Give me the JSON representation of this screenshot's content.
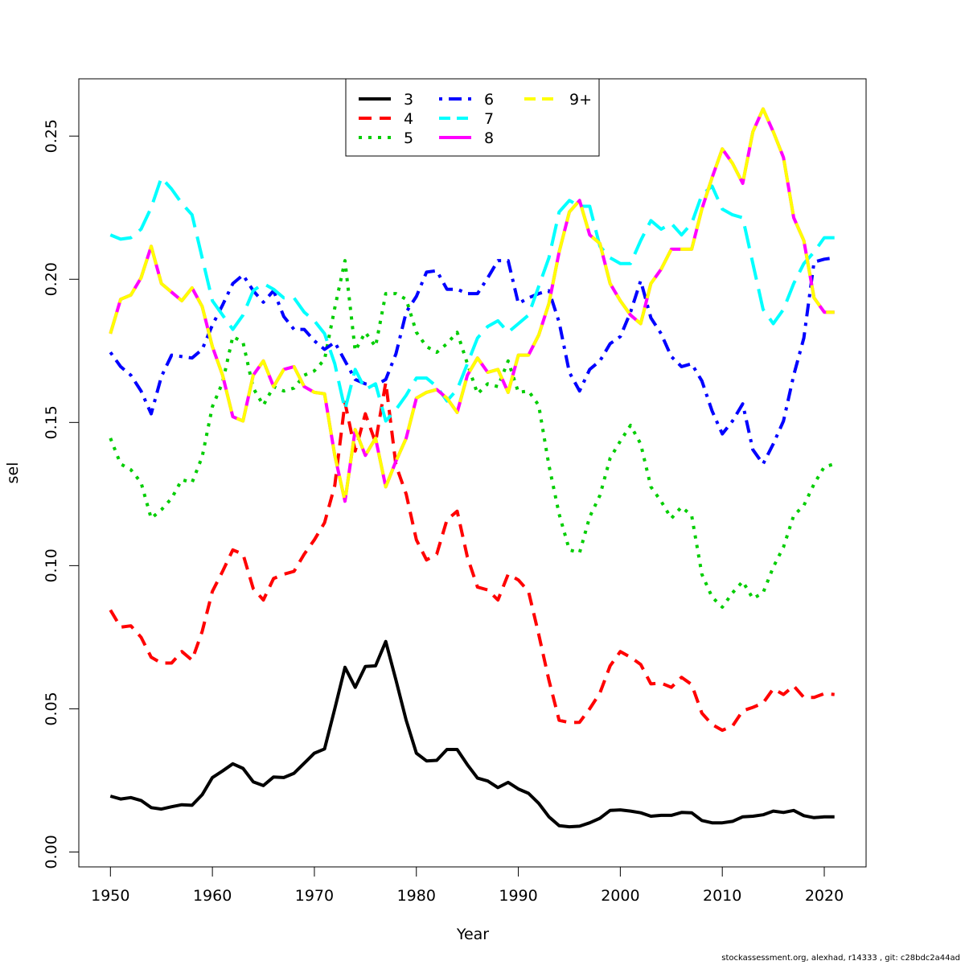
{
  "chart_data": {
    "type": "line",
    "title": "",
    "xlabel": "Year",
    "ylabel": "sel",
    "xlim": [
      1946.9,
      2024.1
    ],
    "ylim": [
      -0.0052,
      0.27
    ],
    "xticks": [
      1950,
      1960,
      1970,
      1980,
      1990,
      2000,
      2010,
      2020
    ],
    "yticks": [
      "0.00",
      "0.05",
      "0.10",
      "0.15",
      "0.20",
      "0.25"
    ],
    "grid": false,
    "legend_position": "top-center",
    "x": [
      1950,
      1951,
      1952,
      1953,
      1954,
      1955,
      1956,
      1957,
      1958,
      1959,
      1960,
      1961,
      1962,
      1963,
      1964,
      1965,
      1966,
      1967,
      1968,
      1969,
      1970,
      1971,
      1972,
      1973,
      1974,
      1975,
      1976,
      1977,
      1978,
      1979,
      1980,
      1981,
      1982,
      1983,
      1984,
      1985,
      1986,
      1987,
      1988,
      1989,
      1990,
      1991,
      1992,
      1993,
      1994,
      1995,
      1996,
      1997,
      1998,
      1999,
      2000,
      2001,
      2002,
      2003,
      2004,
      2005,
      2006,
      2007,
      2008,
      2009,
      2010,
      2011,
      2012,
      2013,
      2014,
      2015,
      2016,
      2017,
      2018,
      2019,
      2020,
      2021
    ],
    "series": [
      {
        "name": "3",
        "color": "#000000",
        "dash": "solid",
        "values": [
          0.0195,
          0.0185,
          0.019,
          0.018,
          0.0155,
          0.015,
          0.0158,
          0.0165,
          0.0163,
          0.02,
          0.026,
          0.0283,
          0.0308,
          0.0292,
          0.0245,
          0.0232,
          0.0262,
          0.026,
          0.0275,
          0.031,
          0.0345,
          0.036,
          0.05,
          0.0645,
          0.0575,
          0.0648,
          0.065,
          0.0735,
          0.06,
          0.046,
          0.0345,
          0.0318,
          0.032,
          0.0358,
          0.0358,
          0.0305,
          0.0258,
          0.0248,
          0.0225,
          0.0243,
          0.022,
          0.0205,
          0.017,
          0.0123,
          0.0092,
          0.0088,
          0.009,
          0.0102,
          0.0118,
          0.0145,
          0.0147,
          0.0143,
          0.0137,
          0.0125,
          0.0128,
          0.0128,
          0.0138,
          0.0137,
          0.011,
          0.0102,
          0.0102,
          0.0107,
          0.0123,
          0.0125,
          0.013,
          0.0143,
          0.0138,
          0.0145,
          0.0127,
          0.012,
          0.0123,
          0.0123
        ]
      },
      {
        "name": "4",
        "color": "#ff0000",
        "dash": "dashed",
        "values": [
          0.0845,
          0.0785,
          0.079,
          0.075,
          0.068,
          0.066,
          0.066,
          0.07,
          0.067,
          0.077,
          0.091,
          0.098,
          0.1055,
          0.104,
          0.092,
          0.088,
          0.0955,
          0.097,
          0.098,
          0.104,
          0.109,
          0.115,
          0.128,
          0.157,
          0.14,
          0.153,
          0.143,
          0.164,
          0.135,
          0.125,
          0.109,
          0.102,
          0.104,
          0.116,
          0.119,
          0.103,
          0.0925,
          0.0915,
          0.088,
          0.097,
          0.095,
          0.091,
          0.076,
          0.06,
          0.046,
          0.0452,
          0.0453,
          0.05,
          0.0555,
          0.065,
          0.07,
          0.068,
          0.0655,
          0.0587,
          0.059,
          0.0575,
          0.061,
          0.0585,
          0.0485,
          0.0445,
          0.0425,
          0.044,
          0.0493,
          0.0505,
          0.052,
          0.057,
          0.055,
          0.058,
          0.054,
          0.054,
          0.0553,
          0.055
        ]
      },
      {
        "name": "5",
        "color": "#00cd00",
        "dash": "dotted",
        "values": [
          0.1445,
          0.1355,
          0.1335,
          0.129,
          0.1165,
          0.1195,
          0.1235,
          0.13,
          0.129,
          0.138,
          0.1555,
          0.164,
          0.18,
          0.178,
          0.162,
          0.156,
          0.1625,
          0.161,
          0.162,
          0.1665,
          0.168,
          0.172,
          0.19,
          0.2065,
          0.175,
          0.1815,
          0.1765,
          0.195,
          0.195,
          0.193,
          0.1815,
          0.1765,
          0.1745,
          0.1775,
          0.1815,
          0.1705,
          0.16,
          0.1635,
          0.1625,
          0.1715,
          0.1605,
          0.161,
          0.156,
          0.135,
          0.118,
          0.1055,
          0.1045,
          0.117,
          0.1245,
          0.1375,
          0.1435,
          0.149,
          0.1425,
          0.1275,
          0.1225,
          0.1165,
          0.1205,
          0.1175,
          0.097,
          0.089,
          0.0855,
          0.0905,
          0.0945,
          0.0885,
          0.0905,
          0.0995,
          0.1065,
          0.1175,
          0.121,
          0.1285,
          0.1345,
          0.1355
        ]
      },
      {
        "name": "6",
        "color": "#0000ff",
        "dash": "dashdot",
        "values": [
          0.1745,
          0.1695,
          0.1665,
          0.161,
          0.153,
          0.166,
          0.1735,
          0.173,
          0.1725,
          0.1755,
          0.184,
          0.191,
          0.1985,
          0.2015,
          0.196,
          0.192,
          0.196,
          0.187,
          0.1825,
          0.1825,
          0.1785,
          0.1755,
          0.178,
          0.1715,
          0.165,
          0.1635,
          0.163,
          0.165,
          0.174,
          0.1885,
          0.194,
          0.2025,
          0.203,
          0.1965,
          0.1965,
          0.195,
          0.195,
          0.2005,
          0.2065,
          0.2065,
          0.1915,
          0.1935,
          0.195,
          0.196,
          0.185,
          0.1675,
          0.161,
          0.1685,
          0.1715,
          0.1775,
          0.18,
          0.1885,
          0.1995,
          0.1865,
          0.181,
          0.173,
          0.1695,
          0.1705,
          0.1645,
          0.154,
          0.146,
          0.1505,
          0.1565,
          0.1405,
          0.1355,
          0.1425,
          0.1505,
          0.1665,
          0.1795,
          0.206,
          0.207,
          0.2075
        ]
      },
      {
        "name": "7",
        "color": "#00ffff",
        "dash": "longdash",
        "values": [
          0.2155,
          0.214,
          0.2145,
          0.2175,
          0.225,
          0.2355,
          0.2315,
          0.2265,
          0.2225,
          0.2075,
          0.1925,
          0.1875,
          0.1825,
          0.1875,
          0.196,
          0.1985,
          0.1965,
          0.1935,
          0.1935,
          0.1885,
          0.1855,
          0.181,
          0.1705,
          0.1545,
          0.1685,
          0.1615,
          0.1635,
          0.1505,
          0.1545,
          0.1595,
          0.1655,
          0.1655,
          0.1625,
          0.1575,
          0.1615,
          0.1705,
          0.1795,
          0.1835,
          0.1855,
          0.1815,
          0.1845,
          0.1875,
          0.1975,
          0.2075,
          0.2235,
          0.2275,
          0.2255,
          0.2255,
          0.2115,
          0.2075,
          0.2055,
          0.2055,
          0.2135,
          0.2205,
          0.2175,
          0.2195,
          0.2155,
          0.2195,
          0.2295,
          0.2325,
          0.2245,
          0.2225,
          0.2215,
          0.2055,
          0.1895,
          0.1845,
          0.1895,
          0.1985,
          0.2055,
          0.2095,
          0.2145,
          0.2145
        ]
      },
      {
        "name": "8",
        "color": "#ff00ff",
        "dash": "solid",
        "values": [
          0.181,
          0.193,
          0.1945,
          0.2005,
          0.2115,
          0.1985,
          0.1955,
          0.1925,
          0.197,
          0.1905,
          0.1765,
          0.1665,
          0.152,
          0.1505,
          0.1665,
          0.1715,
          0.1625,
          0.1685,
          0.1695,
          0.1625,
          0.1605,
          0.16,
          0.1385,
          0.1225,
          0.1475,
          0.1385,
          0.1445,
          0.1275,
          0.1365,
          0.1445,
          0.1585,
          0.1605,
          0.1615,
          0.1585,
          0.1535,
          0.1665,
          0.1725,
          0.1675,
          0.1685,
          0.1605,
          0.1735,
          0.1735,
          0.1805,
          0.1915,
          0.2095,
          0.2235,
          0.2275,
          0.2155,
          0.2125,
          0.1985,
          0.1925,
          0.1875,
          0.1845,
          0.1985,
          0.2035,
          0.2105,
          0.2105,
          0.2105,
          0.2245,
          0.2355,
          0.2455,
          0.2405,
          0.2335,
          0.2515,
          0.2595,
          0.2515,
          0.2425,
          0.2215,
          0.2135,
          0.1935,
          0.1885,
          0.1885
        ]
      },
      {
        "name": "9+",
        "color": "#ffff00",
        "dash": "longdash",
        "values": [
          0.181,
          0.193,
          0.1945,
          0.2005,
          0.2115,
          0.1985,
          0.1955,
          0.1925,
          0.197,
          0.1905,
          0.1765,
          0.1665,
          0.152,
          0.1505,
          0.1665,
          0.1715,
          0.1625,
          0.1685,
          0.1695,
          0.1625,
          0.1605,
          0.16,
          0.1385,
          0.1225,
          0.1475,
          0.1385,
          0.1445,
          0.1275,
          0.1365,
          0.1445,
          0.1585,
          0.1605,
          0.1615,
          0.1585,
          0.1535,
          0.1665,
          0.1725,
          0.1675,
          0.1685,
          0.1605,
          0.1735,
          0.1735,
          0.1805,
          0.1915,
          0.2095,
          0.2235,
          0.2275,
          0.2155,
          0.2125,
          0.1985,
          0.1925,
          0.1875,
          0.1845,
          0.1985,
          0.2035,
          0.2105,
          0.2105,
          0.2105,
          0.2245,
          0.2355,
          0.2455,
          0.2405,
          0.2335,
          0.2515,
          0.2595,
          0.2515,
          0.2425,
          0.2215,
          0.2135,
          0.1935,
          0.1885,
          0.1885
        ]
      }
    ]
  },
  "footer": "stockassessment.org, alexhad, r14333 , git: c28bdc2a44ad"
}
